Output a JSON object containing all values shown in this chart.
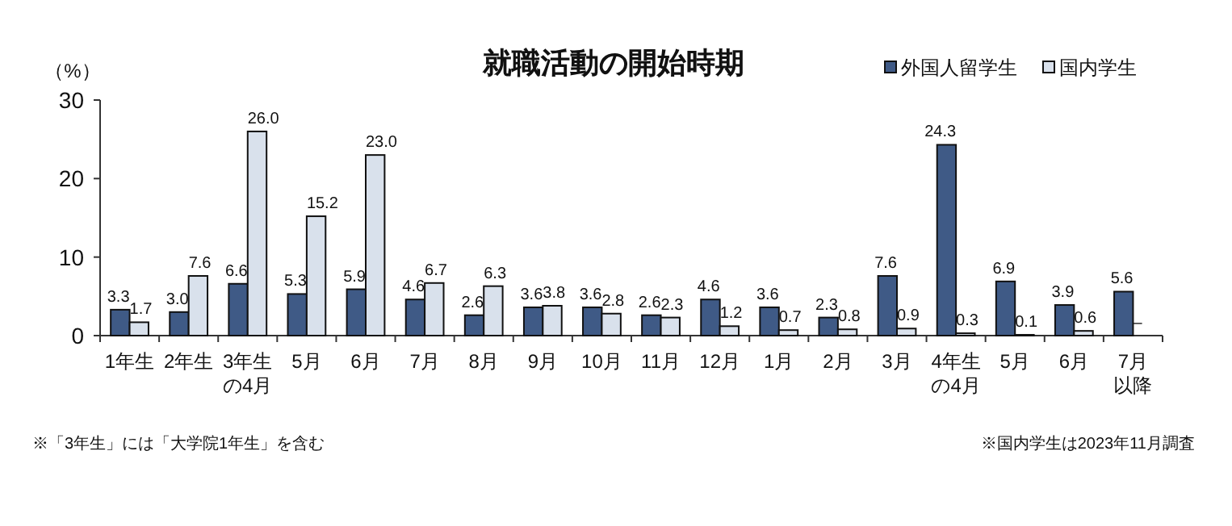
{
  "chart_data": {
    "type": "bar",
    "title": "就職活動の開始時期",
    "ylabel": "（%）",
    "categories": [
      "1年生",
      "2年生",
      "3年生の4月",
      "5月",
      "6月",
      "7月",
      "8月",
      "9月",
      "10月",
      "11月",
      "12月",
      "1月",
      "2月",
      "3月",
      "4年生の4月",
      "5月",
      "6月",
      "7月以降"
    ],
    "series": [
      {
        "name": "外国人留学生",
        "color": "#3f5a86",
        "values": [
          3.3,
          3.0,
          6.6,
          5.3,
          5.9,
          4.6,
          2.6,
          3.6,
          3.6,
          2.6,
          4.6,
          3.6,
          2.3,
          7.6,
          24.3,
          6.9,
          3.9,
          5.6
        ],
        "value_labels": [
          "3.3",
          "3.0",
          "6.6",
          "5.3",
          "5.9",
          "4.6",
          "2.6",
          "3.6",
          "3.6",
          "2.6",
          "4.6",
          "3.6",
          "2.3",
          "7.6",
          "24.3",
          "6.9",
          "3.9",
          "5.6"
        ]
      },
      {
        "name": "国内学生",
        "color": "#d9e1ec",
        "values": [
          1.7,
          7.6,
          26.0,
          15.2,
          23.0,
          6.7,
          6.3,
          3.8,
          2.8,
          2.3,
          1.2,
          0.7,
          0.8,
          0.9,
          0.3,
          0.1,
          0.6,
          null
        ],
        "value_labels": [
          "1.7",
          "7.6",
          "26.0",
          "15.2",
          "23.0",
          "6.7",
          "6.3",
          "3.8",
          "2.8",
          "2.3",
          "1.2",
          "0.7",
          "0.8",
          "0.9",
          "0.3",
          "0.1",
          "0.6",
          "–"
        ]
      }
    ],
    "ylim": [
      0,
      30
    ],
    "yticks": [
      0,
      10,
      20,
      30
    ],
    "grid": false,
    "legend": "top right",
    "annotations": [
      "※「3年生」には「大学院1年生」を含む",
      "※国内学生は2023年11月調査"
    ]
  }
}
